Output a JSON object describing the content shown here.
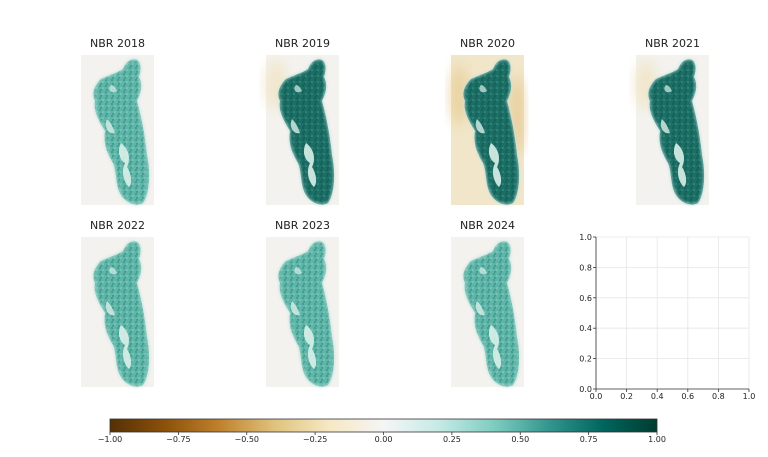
{
  "figure": {
    "panels": [
      {
        "title": "NBR 2018",
        "haze": 0.05,
        "density": 0.55
      },
      {
        "title": "NBR 2019",
        "haze": 0.1,
        "density": 0.85
      },
      {
        "title": "NBR 2020",
        "haze": 0.55,
        "density": 0.85
      },
      {
        "title": "NBR 2021",
        "haze": 0.12,
        "density": 0.82
      },
      {
        "title": "NBR 2022",
        "haze": 0.04,
        "density": 0.55
      },
      {
        "title": "NBR 2023",
        "haze": 0.04,
        "density": 0.5
      },
      {
        "title": "NBR 2024",
        "haze": 0.05,
        "density": 0.55
      }
    ],
    "empty_axes": {
      "x_ticks": [
        "0.0",
        "0.2",
        "0.4",
        "0.6",
        "0.8",
        "1.0"
      ],
      "y_ticks": [
        "0.0",
        "0.2",
        "0.4",
        "0.6",
        "0.8",
        "1.0"
      ],
      "xlim": [
        0,
        1
      ],
      "ylim": [
        0,
        1
      ],
      "grid": true
    },
    "colorbar": {
      "ticks": [
        "−1.00",
        "−0.75",
        "−0.50",
        "−0.25",
        "0.00",
        "0.25",
        "0.50",
        "0.75",
        "1.00"
      ],
      "range": [
        -1,
        1
      ],
      "colormap_stops": [
        "#543005",
        "#8c510a",
        "#bf812d",
        "#dfc27d",
        "#f6e8c3",
        "#f5f5f5",
        "#c7eae5",
        "#80cdc1",
        "#35978f",
        "#01665e",
        "#003c30"
      ]
    }
  },
  "chart_data": {
    "type": "heatmap",
    "panels": [
      "NBR 2018",
      "NBR 2019",
      "NBR 2020",
      "NBR 2021",
      "NBR 2022",
      "NBR 2023",
      "NBR 2024"
    ],
    "value_range": [
      -1,
      1
    ],
    "colorbar_ticks": [
      -1.0,
      -0.75,
      -0.5,
      -0.25,
      0.0,
      0.25,
      0.5,
      0.75,
      1.0
    ],
    "empty_axes": {
      "xlim": [
        0,
        1
      ],
      "ylim": [
        0,
        1
      ],
      "ticks": [
        0.0,
        0.2,
        0.4,
        0.6,
        0.8,
        1.0
      ]
    }
  }
}
